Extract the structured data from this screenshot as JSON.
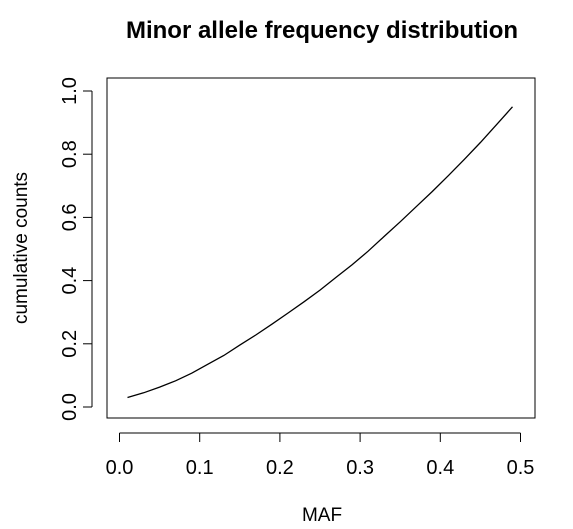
{
  "chart_data": {
    "type": "line",
    "title": "Minor allele frequency distribution",
    "xlabel": "MAF",
    "ylabel": "cumulative counts",
    "xlim": [
      0,
      0.5
    ],
    "ylim": [
      0,
      1.0
    ],
    "x_ticks": [
      "0.0",
      "0.1",
      "0.2",
      "0.3",
      "0.4",
      "0.5"
    ],
    "y_ticks": [
      "0.0",
      "0.2",
      "0.4",
      "0.6",
      "0.8",
      "1.0"
    ],
    "grid": false,
    "legend": "none",
    "line_color": "#000000",
    "series": [
      {
        "x": [
          0.01,
          0.03,
          0.05,
          0.07,
          0.09,
          0.11,
          0.13,
          0.15,
          0.17,
          0.19,
          0.21,
          0.23,
          0.25,
          0.27,
          0.29,
          0.31,
          0.33,
          0.35,
          0.37,
          0.39,
          0.41,
          0.43,
          0.45,
          0.47,
          0.49
        ],
        "y": [
          0.03,
          0.045,
          0.063,
          0.083,
          0.107,
          0.135,
          0.163,
          0.196,
          0.228,
          0.262,
          0.297,
          0.333,
          0.37,
          0.41,
          0.45,
          0.493,
          0.54,
          0.586,
          0.634,
          0.682,
          0.732,
          0.784,
          0.837,
          0.893,
          0.95
        ]
      }
    ]
  }
}
